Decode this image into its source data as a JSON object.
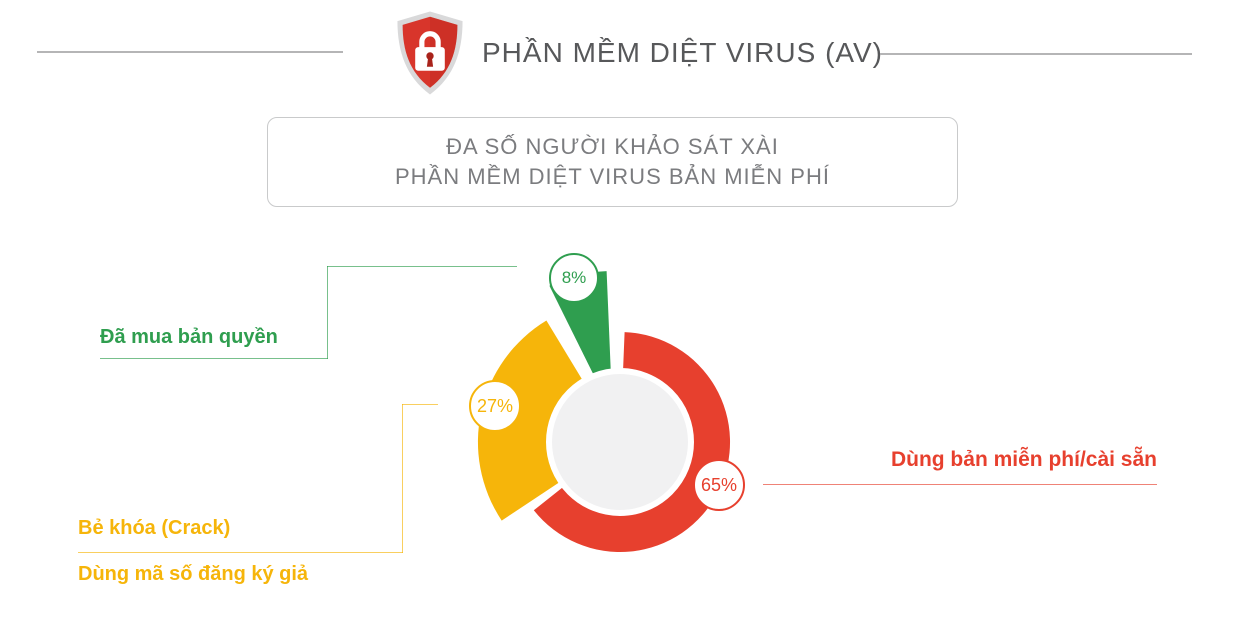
{
  "header": {
    "title": "PHẦN MỀM DIỆT VIRUS (AV)",
    "icon": "shield-lock-icon"
  },
  "callout": {
    "line1": "ĐA SỐ NGƯỜI KHẢO SÁT XÀI",
    "line2": "PHẦN MỀM DIỆT VIRUS BẢN MIỄN PHÍ"
  },
  "chart_data": {
    "type": "pie",
    "title": "PHẦN MỀM DIỆT VIRUS (AV)",
    "subtitle": "ĐA SỐ NGƯỜI KHẢO SÁT XÀI PHẦN MỀM DIỆT VIRUS BẢN MIỄN PHÍ",
    "start_angle": "top",
    "direction": "clockwise",
    "donut_hole_color": "#F1F1F2",
    "slices": [
      {
        "label": "Dùng bản miễn phí/cài sẵn",
        "value": 65,
        "pct_label": "65%",
        "color": "#E7402E",
        "shape": "ring"
      },
      {
        "label": "Bẻ khóa (Crack) / Dùng mã số đăng ký giả",
        "label_lines": [
          "Bẻ khóa (Crack)",
          "Dùng mã số đăng ký giả"
        ],
        "value": 27,
        "pct_label": "27%",
        "color": "#F6B50A",
        "shape": "sector"
      },
      {
        "label": "Đã mua bản quyền",
        "value": 8,
        "pct_label": "8%",
        "color": "#2F9E4F",
        "shape": "sector-exploded"
      }
    ]
  },
  "theme": {
    "title_color": "#57585A",
    "callout_text_color": "#7B7C7F",
    "callout_border_color": "#C9CACB",
    "divider_color": "#B5B5B6",
    "background": "#FFFFFF",
    "shield_red": "#D8352B",
    "shield_rim": "#D9D9DA"
  }
}
